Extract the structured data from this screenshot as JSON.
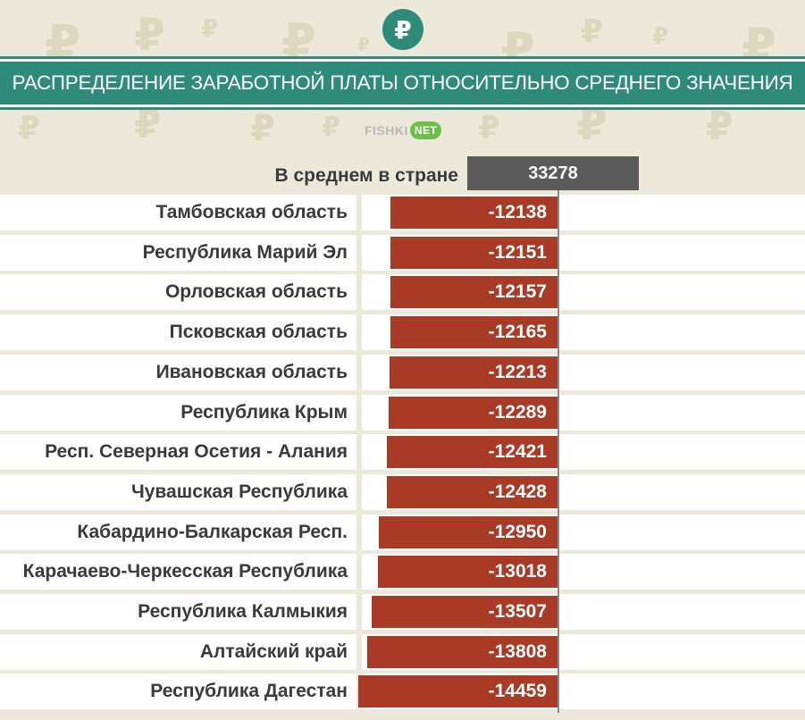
{
  "logo": {
    "symbol": "₽",
    "color": "#2e8b7a"
  },
  "title": "РАСПРЕДЕЛЕНИЕ ЗАРАБОТНОЙ ПЛАТЫ ОТНОСИТЕЛЬНО СРЕДНЕГО ЗНАЧЕНИЯ",
  "brand": {
    "name": "FISHKI",
    "suffix": "NET"
  },
  "colors": {
    "bar": "#a93a26",
    "header": "#2e8b7a",
    "average_box": "#5a5a5a",
    "background": "#ece9db"
  },
  "chart_data": {
    "type": "bar",
    "orientation": "horizontal",
    "title": "РАСПРЕДЕЛЕНИЕ ЗАРАБОТНОЙ ПЛАТЫ ОТНОСИТЕЛЬНО СРЕДНЕГО ЗНАЧЕНИЯ",
    "average": {
      "label": "В среднем в стране",
      "value": "33278"
    },
    "categories": [
      "Тамбовская область",
      "Республика Марий Эл",
      "Орловская область",
      "Псковская область",
      "Ивановская область",
      "Республика Крым",
      "Респ. Северная  Осетия - Алания",
      "Чувашская Республика",
      "Кабардино-Балкарская Респ.",
      "Карачаево-Черкесская Республика",
      "Республика Калмыкия",
      "Алтайский край",
      "Республика Дагестан"
    ],
    "values": [
      -12138,
      -12151,
      -12157,
      -12165,
      -12213,
      -12289,
      -12421,
      -12428,
      -12950,
      -13018,
      -13507,
      -13808,
      -14459
    ],
    "value_labels": [
      "-12138",
      "-12151",
      "-12157",
      "-12165",
      "-12213",
      "-12289",
      "-12421",
      "-12428",
      "-12950",
      "-13018",
      "-13507",
      "-13808",
      "-14459"
    ],
    "xlim": [
      -33278,
      33278
    ]
  }
}
